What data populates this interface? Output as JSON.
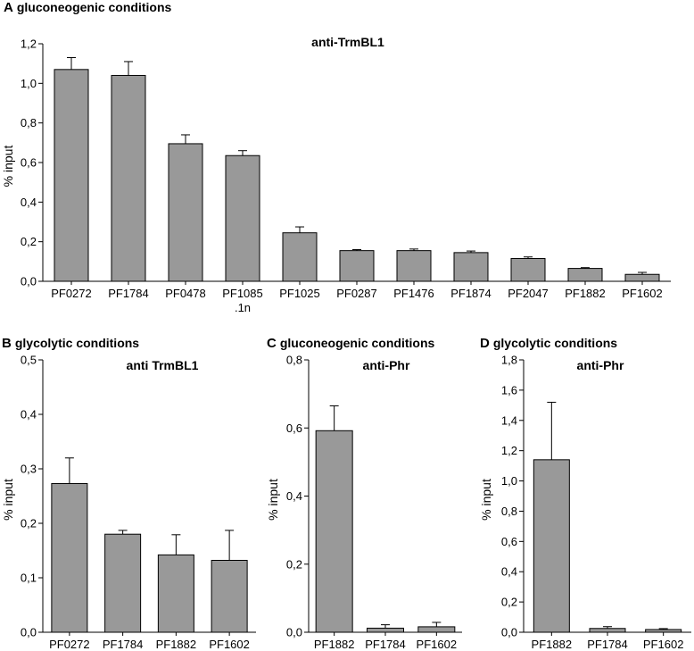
{
  "chart_data": [
    {
      "panel": "A",
      "panel_title": "gluconeogenic conditions",
      "type": "bar",
      "title": "anti-TrmBL1",
      "ylabel": "% input",
      "ylim": [
        0,
        1.2
      ],
      "yticks": [
        "0,0",
        "0,2",
        "0,4",
        "0,6",
        "0,8",
        "1,0",
        "1,2"
      ],
      "categories": [
        [
          "PF0272"
        ],
        [
          "PF1784"
        ],
        [
          "PF0478"
        ],
        [
          "PF1085",
          ".1n"
        ],
        [
          "PF1025"
        ],
        [
          "PF0287"
        ],
        [
          "PF1476"
        ],
        [
          "PF1874"
        ],
        [
          "PF2047"
        ],
        [
          "PF1882"
        ],
        [
          "PF1602"
        ]
      ],
      "values": [
        1.07,
        1.04,
        0.695,
        0.635,
        0.245,
        0.155,
        0.155,
        0.145,
        0.115,
        0.065,
        0.035
      ],
      "errors": [
        0.06,
        0.07,
        0.045,
        0.025,
        0.03,
        0.005,
        0.008,
        0.008,
        0.008,
        0.004,
        0.01
      ],
      "color": "#999999"
    },
    {
      "panel": "B",
      "panel_title": "glycolytic conditions",
      "type": "bar",
      "title": "anti TrmBL1",
      "ylabel": "% input",
      "ylim": [
        0,
        0.5
      ],
      "yticks": [
        "0,0",
        "0,1",
        "0,2",
        "0,3",
        "0,4",
        "0,5"
      ],
      "categories": [
        [
          "PF0272"
        ],
        [
          "PF1784"
        ],
        [
          "PF1882"
        ],
        [
          "PF1602"
        ]
      ],
      "values": [
        0.273,
        0.18,
        0.142,
        0.132
      ],
      "errors": [
        0.047,
        0.007,
        0.037,
        0.055
      ],
      "color": "#999999"
    },
    {
      "panel": "C",
      "panel_title": "gluconeogenic conditions",
      "type": "bar",
      "title": "anti-Phr",
      "ylabel": "% input",
      "ylim": [
        0,
        0.8
      ],
      "yticks": [
        "0,0",
        "0,2",
        "0,4",
        "0,6",
        "0,8"
      ],
      "categories": [
        [
          "PF1882"
        ],
        [
          "PF1784"
        ],
        [
          "PF1602"
        ]
      ],
      "values": [
        0.592,
        0.012,
        0.016
      ],
      "errors": [
        0.073,
        0.01,
        0.013
      ],
      "color": "#999999"
    },
    {
      "panel": "D",
      "panel_title": "glycolytic conditions",
      "type": "bar",
      "title": "anti-Phr",
      "ylabel": "% input",
      "ylim": [
        0,
        1.8
      ],
      "yticks": [
        "0,0",
        "0,2",
        "0,4",
        "0,6",
        "0,8",
        "1,0",
        "1,2",
        "1,4",
        "1,6",
        "1,8"
      ],
      "categories": [
        [
          "PF1882"
        ],
        [
          "PF1784"
        ],
        [
          "PF1602"
        ]
      ],
      "values": [
        1.14,
        0.025,
        0.018
      ],
      "errors": [
        0.38,
        0.012,
        0.006
      ],
      "color": "#999999"
    }
  ]
}
